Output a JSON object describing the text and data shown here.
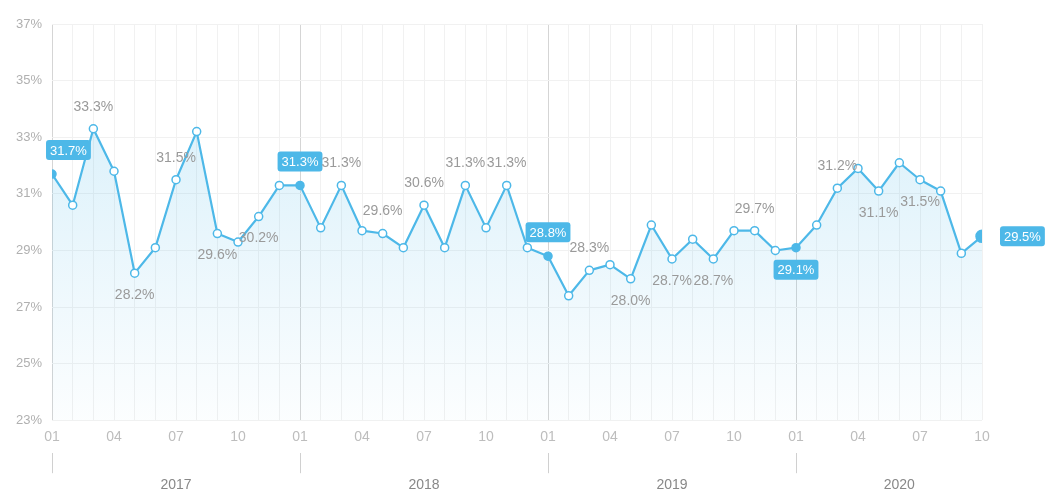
{
  "chart_data": {
    "type": "area",
    "x": [
      "2017-01",
      "2017-02",
      "2017-03",
      "2017-04",
      "2017-05",
      "2017-06",
      "2017-07",
      "2017-08",
      "2017-09",
      "2017-10",
      "2017-11",
      "2017-12",
      "2018-01",
      "2018-02",
      "2018-03",
      "2018-04",
      "2018-05",
      "2018-06",
      "2018-07",
      "2018-08",
      "2018-09",
      "2018-10",
      "2018-11",
      "2018-12",
      "2019-01",
      "2019-02",
      "2019-03",
      "2019-04",
      "2019-05",
      "2019-06",
      "2019-07",
      "2019-08",
      "2019-09",
      "2019-10",
      "2019-11",
      "2019-12",
      "2020-01",
      "2020-02",
      "2020-03",
      "2020-04",
      "2020-05",
      "2020-06",
      "2020-07",
      "2020-08",
      "2020-09",
      "2020-10"
    ],
    "series": [
      {
        "color": "#4db8e8",
        "values": [
          31.7,
          30.6,
          33.3,
          31.8,
          28.2,
          29.1,
          31.5,
          33.2,
          29.6,
          29.3,
          30.2,
          31.3,
          31.3,
          29.8,
          31.3,
          29.7,
          29.6,
          29.1,
          30.6,
          29.1,
          31.3,
          29.8,
          31.3,
          29.1,
          28.8,
          27.4,
          28.3,
          28.5,
          28.0,
          29.9,
          28.7,
          29.4,
          28.7,
          29.7,
          29.7,
          29.0,
          29.1,
          29.9,
          31.2,
          31.9,
          31.1,
          32.1,
          31.5,
          31.1,
          28.9,
          29.5
        ],
        "value_labels": [
          "31.7%",
          null,
          "33.3%",
          null,
          "28.2%",
          null,
          "31.5%",
          null,
          "29.6%",
          null,
          "30.2%",
          null,
          "31.3%",
          null,
          "31.3%",
          null,
          "29.6%",
          null,
          "30.6%",
          null,
          "31.3%",
          null,
          "31.3%",
          null,
          "28.8%",
          null,
          "28.3%",
          null,
          "28.0%",
          null,
          "28.7%",
          null,
          "28.7%",
          null,
          "29.7%",
          null,
          "29.1%",
          null,
          "31.2%",
          null,
          "31.1%",
          null,
          "31.5%",
          null,
          null,
          "29.5%"
        ]
      }
    ],
    "xlim": [
      "2017-01",
      "2020-10"
    ],
    "xticks": [
      {
        "value": "2017-01",
        "label": "01"
      },
      {
        "value": "2017-02",
        "label": null
      },
      {
        "value": "2017-03",
        "label": null
      },
      {
        "value": "2017-04",
        "label": "04"
      },
      {
        "value": "2017-05",
        "label": null
      },
      {
        "value": "2017-06",
        "label": null
      },
      {
        "value": "2017-07",
        "label": "07"
      },
      {
        "value": "2017-08",
        "label": null
      },
      {
        "value": "2017-09",
        "label": null
      },
      {
        "value": "2017-10",
        "label": "10"
      },
      {
        "value": "2017-11",
        "label": null
      },
      {
        "value": "2017-12",
        "label": null
      },
      {
        "value": "2018-01",
        "label": "01"
      },
      {
        "value": "2018-02",
        "label": null
      },
      {
        "value": "2018-03",
        "label": null
      },
      {
        "value": "2018-04",
        "label": "04"
      },
      {
        "value": "2018-05",
        "label": null
      },
      {
        "value": "2018-06",
        "label": null
      },
      {
        "value": "2018-07",
        "label": "07"
      },
      {
        "value": "2018-08",
        "label": null
      },
      {
        "value": "2018-09",
        "label": null
      },
      {
        "value": "2018-10",
        "label": "10"
      },
      {
        "value": "2018-11",
        "label": null
      },
      {
        "value": "2018-12",
        "label": null
      },
      {
        "value": "2019-01",
        "label": "01"
      },
      {
        "value": "2019-02",
        "label": null
      },
      {
        "value": "2019-03",
        "label": null
      },
      {
        "value": "2019-04",
        "label": "04"
      },
      {
        "value": "2019-05",
        "label": null
      },
      {
        "value": "2019-06",
        "label": null
      },
      {
        "value": "2019-07",
        "label": "07"
      },
      {
        "value": "2019-08",
        "label": null
      },
      {
        "value": "2019-09",
        "label": null
      },
      {
        "value": "2019-10",
        "label": "10"
      },
      {
        "value": "2019-11",
        "label": null
      },
      {
        "value": "2019-12",
        "label": null
      },
      {
        "value": "2020-01",
        "label": "01"
      },
      {
        "value": "2020-02",
        "label": null
      },
      {
        "value": "2020-03",
        "label": null
      },
      {
        "value": "2020-04",
        "label": "04"
      },
      {
        "value": "2020-05",
        "label": null
      },
      {
        "value": "2020-06",
        "label": null
      },
      {
        "value": "2020-07",
        "label": "07"
      },
      {
        "value": "2020-08",
        "label": null
      },
      {
        "value": "2020-09",
        "label": null
      },
      {
        "value": "2020-10",
        "label": "10"
      }
    ],
    "x2lim": [
      "2017-01",
      "2020-10"
    ],
    "x2ticks": [
      {
        "value": "2017-01",
        "label": null
      },
      {
        "value": "2017-07",
        "label": "2017"
      },
      {
        "value": "2018-01",
        "label": null
      },
      {
        "value": "2018-07",
        "label": "2018"
      },
      {
        "value": "2019-01",
        "label": null
      },
      {
        "value": "2019-07",
        "label": "2019"
      },
      {
        "value": "2020-01",
        "label": null
      },
      {
        "value": "2020-06",
        "label": "2020"
      }
    ],
    "ylim": [
      23,
      37
    ],
    "yticks": [
      {
        "value": 23,
        "label": "23%"
      },
      {
        "value": 25,
        "label": "25%"
      },
      {
        "value": 27,
        "label": "27%"
      },
      {
        "value": 29,
        "label": "29%"
      },
      {
        "value": 31,
        "label": "31%"
      },
      {
        "value": 33,
        "label": "33%"
      },
      {
        "value": 35,
        "label": "35%"
      },
      {
        "value": 37,
        "label": "37%"
      }
    ],
    "grid": true,
    "legend": false,
    "marker": "circle",
    "line_style": "solid"
  }
}
